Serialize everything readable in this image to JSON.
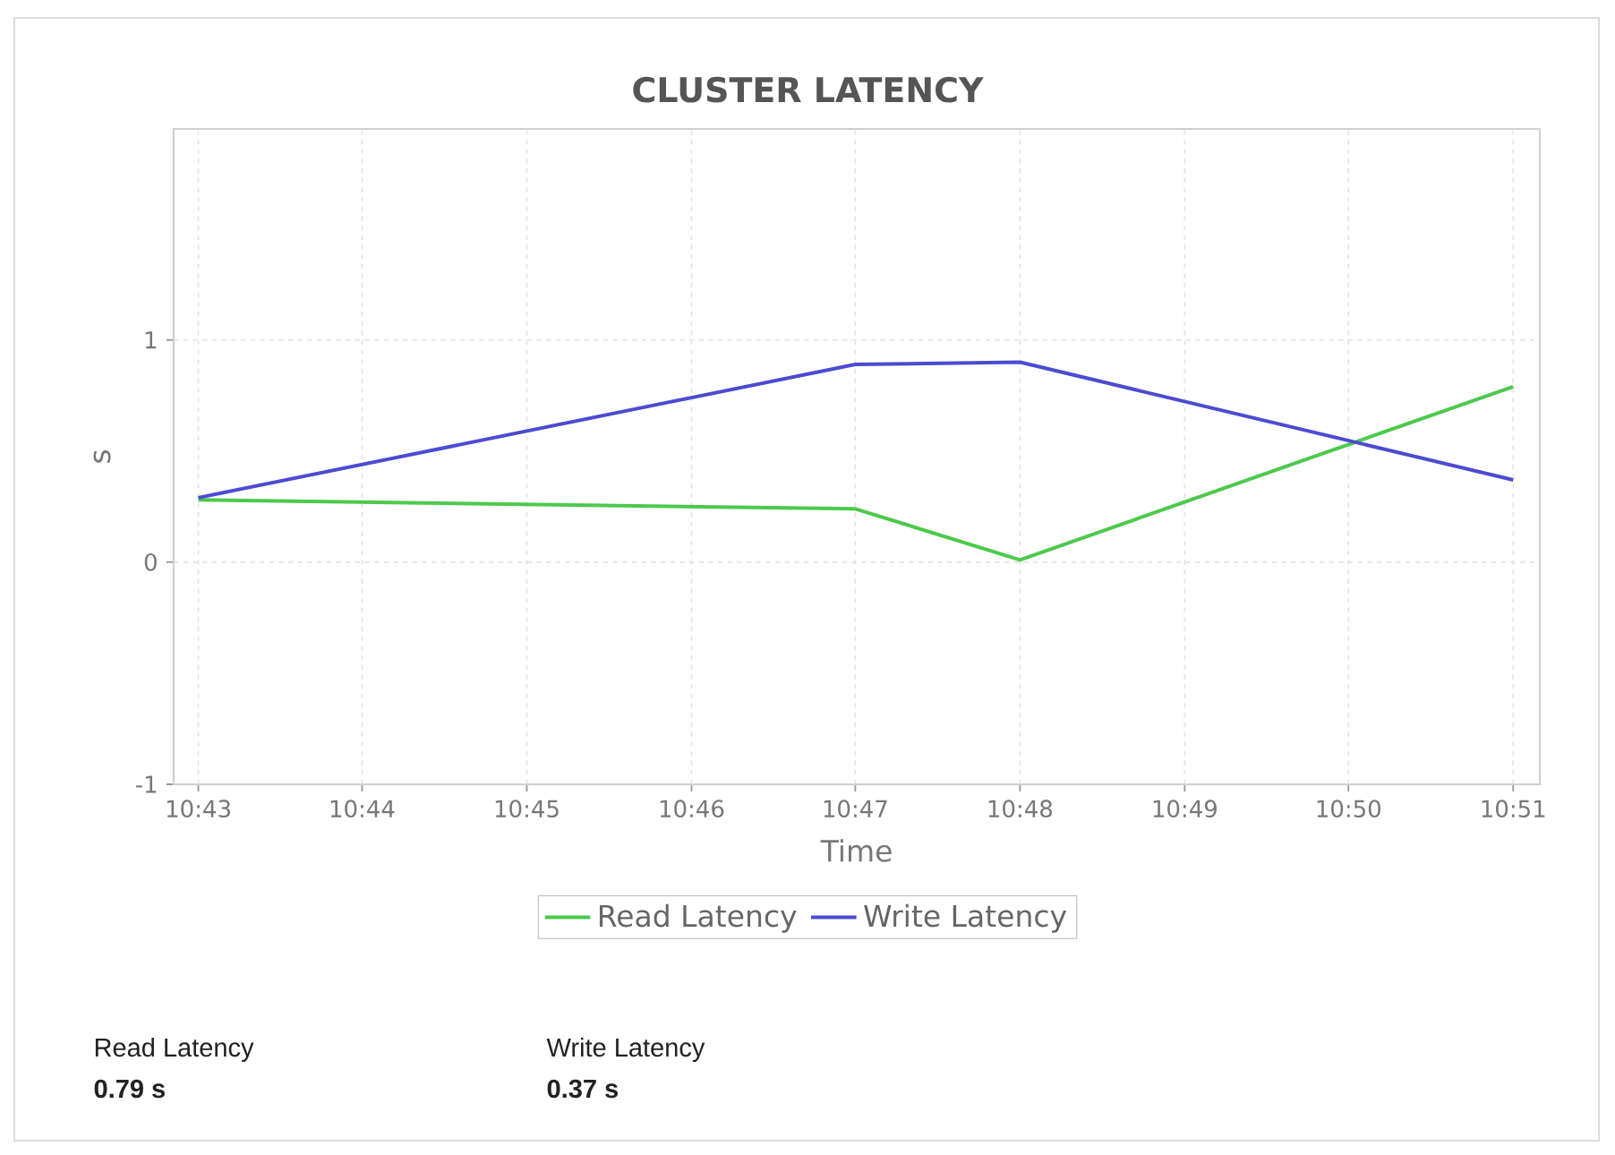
{
  "chart_data": {
    "type": "line",
    "title": "CLUSTER LATENCY",
    "xlabel": "Time",
    "ylabel": "s",
    "x": [
      10.7167,
      10.7833,
      10.8,
      10.85
    ],
    "series": [
      {
        "name": "Read Latency",
        "color": "#4cc94c",
        "values": [
          0.28,
          0.24,
          0.01,
          0.79
        ]
      },
      {
        "name": "Write Latency",
        "color": "#4b4bd2",
        "values": [
          0.29,
          0.89,
          0.9,
          0.37
        ]
      }
    ],
    "xlim": [
      10.7142,
      10.8527
    ],
    "ylim": [
      -1,
      1.95
    ],
    "xticks": [
      {
        "value": 10.7167,
        "label": "10:43"
      },
      {
        "value": 10.7333,
        "label": "10:44"
      },
      {
        "value": 10.75,
        "label": "10:45"
      },
      {
        "value": 10.7667,
        "label": "10:46"
      },
      {
        "value": 10.7833,
        "label": "10:47"
      },
      {
        "value": 10.8,
        "label": "10:48"
      },
      {
        "value": 10.8167,
        "label": "10:49"
      },
      {
        "value": 10.8333,
        "label": "10:50"
      },
      {
        "value": 10.85,
        "label": "10:51"
      }
    ],
    "yticks": [
      -1,
      0,
      1
    ],
    "grid": true,
    "legend": "bottom",
    "annotations": [
      "Read Latency",
      "0.79 s",
      "Write Latency",
      "0.37 s"
    ]
  }
}
